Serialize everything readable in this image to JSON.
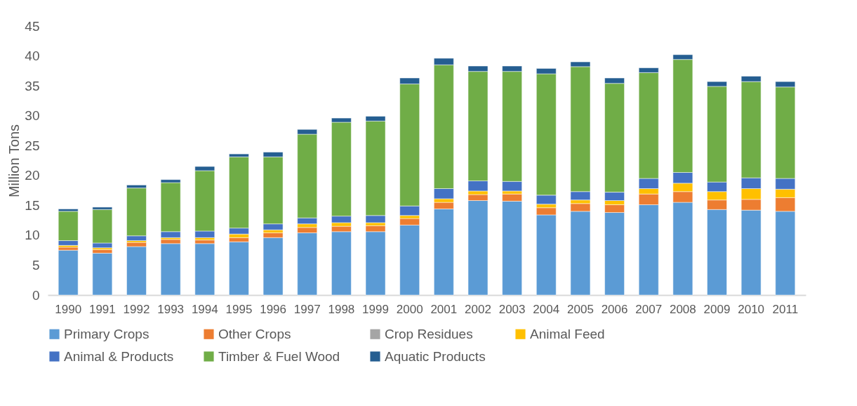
{
  "chart_data": {
    "type": "bar",
    "stacked": true,
    "ylabel": "Million Tons",
    "ylim": [
      0,
      45
    ],
    "yticks": [
      0,
      5,
      10,
      15,
      20,
      25,
      30,
      35,
      40,
      45
    ],
    "grid": false,
    "legend": "bottom",
    "categories": [
      "1990",
      "1991",
      "1992",
      "1993",
      "1994",
      "1995",
      "1996",
      "1997",
      "1998",
      "1999",
      "2000",
      "2001",
      "2002",
      "2003",
      "2004",
      "2005",
      "2006",
      "2007",
      "2008",
      "2009",
      "2010",
      "2011"
    ],
    "series": [
      {
        "name": "Primary Crops",
        "color": "#5b9bd5",
        "values": [
          7.5,
          7.0,
          8.1,
          8.6,
          8.6,
          8.9,
          9.6,
          10.4,
          10.6,
          10.6,
          11.7,
          14.4,
          15.8,
          15.7,
          13.4,
          14.0,
          13.8,
          15.1,
          15.5,
          14.3,
          14.2,
          14.0
        ]
      },
      {
        "name": "Other Crops",
        "color": "#ed7d31",
        "values": [
          0.5,
          0.6,
          0.7,
          0.7,
          0.6,
          0.7,
          0.8,
          0.9,
          0.9,
          1.0,
          1.1,
          1.1,
          1.0,
          1.2,
          1.2,
          1.3,
          1.3,
          1.8,
          1.8,
          1.6,
          1.8,
          2.3
        ]
      },
      {
        "name": "Crop Residues",
        "color": "#a5a5a5",
        "values": [
          null,
          null,
          null,
          null,
          null,
          null,
          null,
          null,
          null,
          null,
          null,
          null,
          null,
          null,
          null,
          null,
          null,
          null,
          null,
          null,
          null,
          null
        ]
      },
      {
        "name": "Animal Feed",
        "color": "#ffc000",
        "values": [
          0.3,
          0.3,
          0.3,
          0.3,
          0.4,
          0.6,
          0.5,
          0.6,
          0.6,
          0.5,
          0.5,
          0.6,
          0.6,
          0.5,
          0.6,
          0.6,
          0.7,
          0.9,
          1.4,
          1.4,
          1.8,
          1.4
        ]
      },
      {
        "name": "Animal & Products",
        "color": "#4472c4",
        "values": [
          0.8,
          0.8,
          0.8,
          1.0,
          1.1,
          1.0,
          1.0,
          1.0,
          1.1,
          1.2,
          1.6,
          1.7,
          1.7,
          1.6,
          1.5,
          1.4,
          1.4,
          1.7,
          1.8,
          1.6,
          1.8,
          1.8
        ]
      },
      {
        "name": "Timber & Fuel Wood",
        "color": "#70ad47",
        "values": [
          4.9,
          5.6,
          8.0,
          8.2,
          10.1,
          11.9,
          11.2,
          14.0,
          15.7,
          15.8,
          20.4,
          20.7,
          18.3,
          18.4,
          20.3,
          20.9,
          18.2,
          17.7,
          18.9,
          16.0,
          16.1,
          15.3
        ]
      },
      {
        "name": "Aquatic Products",
        "color": "#255e91",
        "values": [
          0.4,
          0.4,
          0.5,
          0.5,
          0.7,
          0.5,
          0.8,
          0.8,
          0.7,
          0.8,
          1.0,
          1.1,
          0.9,
          0.9,
          0.9,
          0.8,
          0.9,
          0.8,
          0.8,
          0.8,
          0.9,
          0.9
        ]
      }
    ]
  }
}
